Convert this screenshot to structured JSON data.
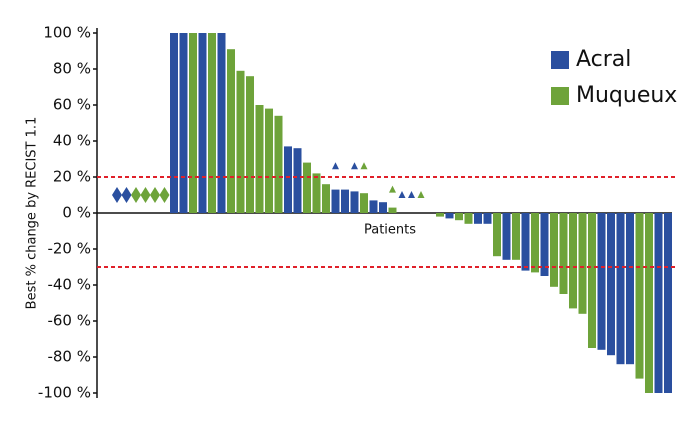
{
  "chart_data": {
    "type": "waterfall",
    "y_label": "Best % change by RECIST 1.1",
    "x_label": "Patients",
    "ylim": [
      -100,
      100
    ],
    "yticks": [
      {
        "value": 100,
        "label": "100 %"
      },
      {
        "value": 80,
        "label": "80 %"
      },
      {
        "value": 60,
        "label": "60 %"
      },
      {
        "value": 40,
        "label": "40 %"
      },
      {
        "value": 20,
        "label": "20 %"
      },
      {
        "value": 0,
        "label": "0 %"
      },
      {
        "value": -20,
        "label": "-20 %"
      },
      {
        "value": -40,
        "label": "-40 %"
      },
      {
        "value": -60,
        "label": "-60 %"
      },
      {
        "value": -80,
        "label": "-80 %"
      },
      {
        "value": -100,
        "label": "-100 %"
      }
    ],
    "reference_lines": [
      20,
      -30
    ],
    "reference_color": "#e0202a",
    "categories": [
      null,
      null,
      null,
      null,
      null,
      null,
      null,
      null,
      null,
      null,
      null,
      null,
      null,
      null,
      null,
      null,
      null,
      null,
      null,
      null,
      null,
      null,
      null,
      null,
      null,
      null,
      null,
      null,
      null,
      null,
      null,
      null,
      null,
      null,
      null,
      null,
      null,
      null,
      null,
      null,
      null,
      null,
      null,
      null,
      null,
      null,
      null,
      null,
      null,
      null,
      null,
      null,
      null,
      null,
      null,
      null,
      null,
      null,
      null
    ],
    "series": [
      {
        "name": "Acral",
        "color": "#2a4f9f",
        "values": [
          null,
          null,
          null,
          null,
          null,
          null,
          100,
          100,
          null,
          100,
          null,
          100,
          null,
          null,
          null,
          null,
          null,
          null,
          37,
          36,
          null,
          null,
          null,
          13,
          13,
          12,
          null,
          7,
          6,
          null,
          null,
          null,
          null,
          null,
          null,
          -3,
          null,
          null,
          -6,
          -6,
          null,
          -26,
          null,
          -32,
          null,
          -35,
          null,
          null,
          null,
          null,
          null,
          -76,
          -79,
          -84,
          -84,
          null,
          null,
          -100,
          -100
        ]
      },
      {
        "name": "Muqueux",
        "color": "#6ea33a",
        "values": [
          null,
          null,
          null,
          null,
          null,
          null,
          null,
          null,
          100,
          null,
          100,
          null,
          91,
          79,
          76,
          60,
          58,
          54,
          null,
          null,
          28,
          22,
          16,
          null,
          null,
          null,
          11,
          null,
          null,
          3,
          null,
          null,
          null,
          null,
          -2,
          null,
          -4,
          -6,
          null,
          null,
          -24,
          null,
          -26,
          null,
          -33,
          null,
          -41,
          -45,
          -53,
          -56,
          -75,
          null,
          null,
          null,
          null,
          -92,
          -100,
          null,
          null
        ]
      }
    ],
    "markers": [
      {
        "shape": "diamond",
        "color": "#2a4f9f",
        "x": 0,
        "y": 10
      },
      {
        "shape": "diamond",
        "color": "#2a4f9f",
        "x": 1,
        "y": 10
      },
      {
        "shape": "diamond",
        "color": "#6ea33a",
        "x": 2,
        "y": 10
      },
      {
        "shape": "diamond",
        "color": "#6ea33a",
        "x": 3,
        "y": 10
      },
      {
        "shape": "diamond",
        "color": "#6ea33a",
        "x": 4,
        "y": 10
      },
      {
        "shape": "diamond",
        "color": "#6ea33a",
        "x": 5,
        "y": 10
      },
      {
        "shape": "triangle",
        "color": "#2a4f9f",
        "x": 23,
        "y": 26
      },
      {
        "shape": "triangle",
        "color": "#2a4f9f",
        "x": 25,
        "y": 26
      },
      {
        "shape": "triangle",
        "color": "#6ea33a",
        "x": 26,
        "y": 26
      },
      {
        "shape": "triangle",
        "color": "#6ea33a",
        "x": 29,
        "y": 13
      },
      {
        "shape": "triangle",
        "color": "#2a4f9f",
        "x": 30,
        "y": 10
      },
      {
        "shape": "triangle",
        "color": "#2a4f9f",
        "x": 31,
        "y": 10
      },
      {
        "shape": "triangle",
        "color": "#6ea33a",
        "x": 32,
        "y": 10
      }
    ]
  }
}
